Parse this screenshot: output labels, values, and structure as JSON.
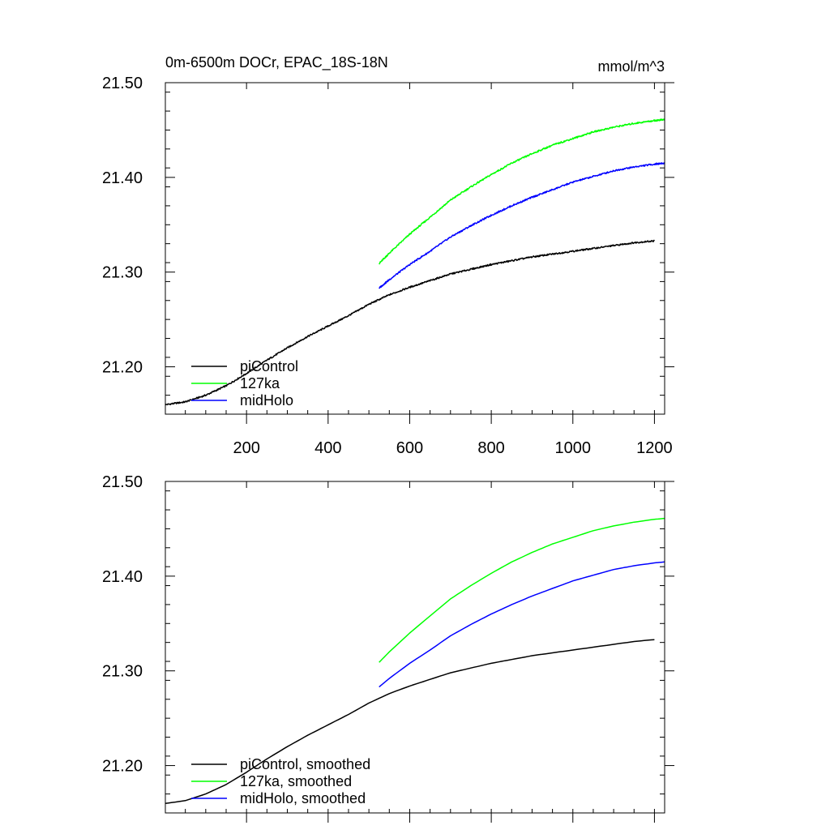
{
  "chart_data": [
    {
      "type": "line",
      "title": "0m-6500m DOCr, EPAC_18S-18N",
      "units": "mmol/m^3",
      "xlabel": "",
      "ylabel": "",
      "xlim": [
        1,
        1225
      ],
      "ylim": [
        21.15,
        21.5
      ],
      "xticks": [
        200,
        400,
        600,
        800,
        1000,
        1200
      ],
      "xtick_labels": [
        "200",
        "400",
        "600",
        "800",
        "1000",
        "1200"
      ],
      "yticks": [
        21.2,
        21.3,
        21.4,
        21.5
      ],
      "ytick_labels": [
        "21.20",
        "21.30",
        "21.40",
        "21.50"
      ],
      "legend_position": "bottom-left",
      "grid": false,
      "series": [
        {
          "name": "piControl",
          "color": "#000000",
          "x": [
            1,
            50,
            100,
            150,
            200,
            250,
            300,
            350,
            400,
            450,
            500,
            550,
            600,
            650,
            700,
            750,
            800,
            850,
            900,
            950,
            1000,
            1050,
            1100,
            1150,
            1200
          ],
          "values": [
            21.16,
            21.163,
            21.17,
            21.18,
            21.193,
            21.207,
            21.22,
            21.232,
            21.243,
            21.254,
            21.266,
            21.276,
            21.284,
            21.291,
            21.298,
            21.303,
            21.308,
            21.312,
            21.316,
            21.319,
            21.322,
            21.325,
            21.328,
            21.331,
            21.333
          ]
        },
        {
          "name": "127ka",
          "color": "#00ff00",
          "x": [
            525,
            550,
            600,
            650,
            700,
            750,
            800,
            850,
            900,
            950,
            1000,
            1050,
            1100,
            1150,
            1200,
            1225
          ],
          "values": [
            21.309,
            21.32,
            21.34,
            21.358,
            21.376,
            21.39,
            21.403,
            21.415,
            21.425,
            21.434,
            21.441,
            21.448,
            21.453,
            21.457,
            21.46,
            21.461
          ]
        },
        {
          "name": "midHolo",
          "color": "#0000ff",
          "x": [
            525,
            550,
            600,
            650,
            700,
            750,
            800,
            850,
            900,
            950,
            1000,
            1050,
            1100,
            1150,
            1200,
            1225
          ],
          "values": [
            21.283,
            21.292,
            21.308,
            21.322,
            21.337,
            21.349,
            21.36,
            21.37,
            21.379,
            21.387,
            21.395,
            21.401,
            21.407,
            21.411,
            21.414,
            21.415
          ]
        }
      ]
    },
    {
      "type": "line",
      "title": "",
      "xlabel": "",
      "ylabel": "",
      "xlim": [
        1,
        1225
      ],
      "ylim": [
        21.15,
        21.5
      ],
      "xticks": [
        200,
        400,
        600,
        800,
        1000,
        1200
      ],
      "yticks": [
        21.2,
        21.3,
        21.4,
        21.5
      ],
      "ytick_labels": [
        "21.20",
        "21.30",
        "21.40",
        "21.50"
      ],
      "legend_position": "bottom-left",
      "grid": false,
      "series": [
        {
          "name": "piControl, smoothed",
          "color": "#000000",
          "x": [
            1,
            50,
            100,
            150,
            200,
            250,
            300,
            350,
            400,
            450,
            500,
            550,
            600,
            650,
            700,
            750,
            800,
            850,
            900,
            950,
            1000,
            1050,
            1100,
            1150,
            1200
          ],
          "values": [
            21.16,
            21.163,
            21.17,
            21.18,
            21.193,
            21.207,
            21.22,
            21.232,
            21.243,
            21.254,
            21.266,
            21.276,
            21.284,
            21.291,
            21.298,
            21.303,
            21.308,
            21.312,
            21.316,
            21.319,
            21.322,
            21.325,
            21.328,
            21.331,
            21.333
          ]
        },
        {
          "name": "127ka, smoothed",
          "color": "#00ff00",
          "x": [
            525,
            550,
            600,
            650,
            700,
            750,
            800,
            850,
            900,
            950,
            1000,
            1050,
            1100,
            1150,
            1200,
            1225
          ],
          "values": [
            21.309,
            21.32,
            21.34,
            21.358,
            21.376,
            21.39,
            21.403,
            21.415,
            21.425,
            21.434,
            21.441,
            21.448,
            21.453,
            21.457,
            21.46,
            21.461
          ]
        },
        {
          "name": "midHolo, smoothed",
          "color": "#0000ff",
          "x": [
            525,
            550,
            600,
            650,
            700,
            750,
            800,
            850,
            900,
            950,
            1000,
            1050,
            1100,
            1150,
            1200,
            1225
          ],
          "values": [
            21.283,
            21.292,
            21.308,
            21.322,
            21.337,
            21.349,
            21.36,
            21.37,
            21.379,
            21.387,
            21.395,
            21.401,
            21.407,
            21.411,
            21.414,
            21.415
          ]
        }
      ]
    }
  ]
}
